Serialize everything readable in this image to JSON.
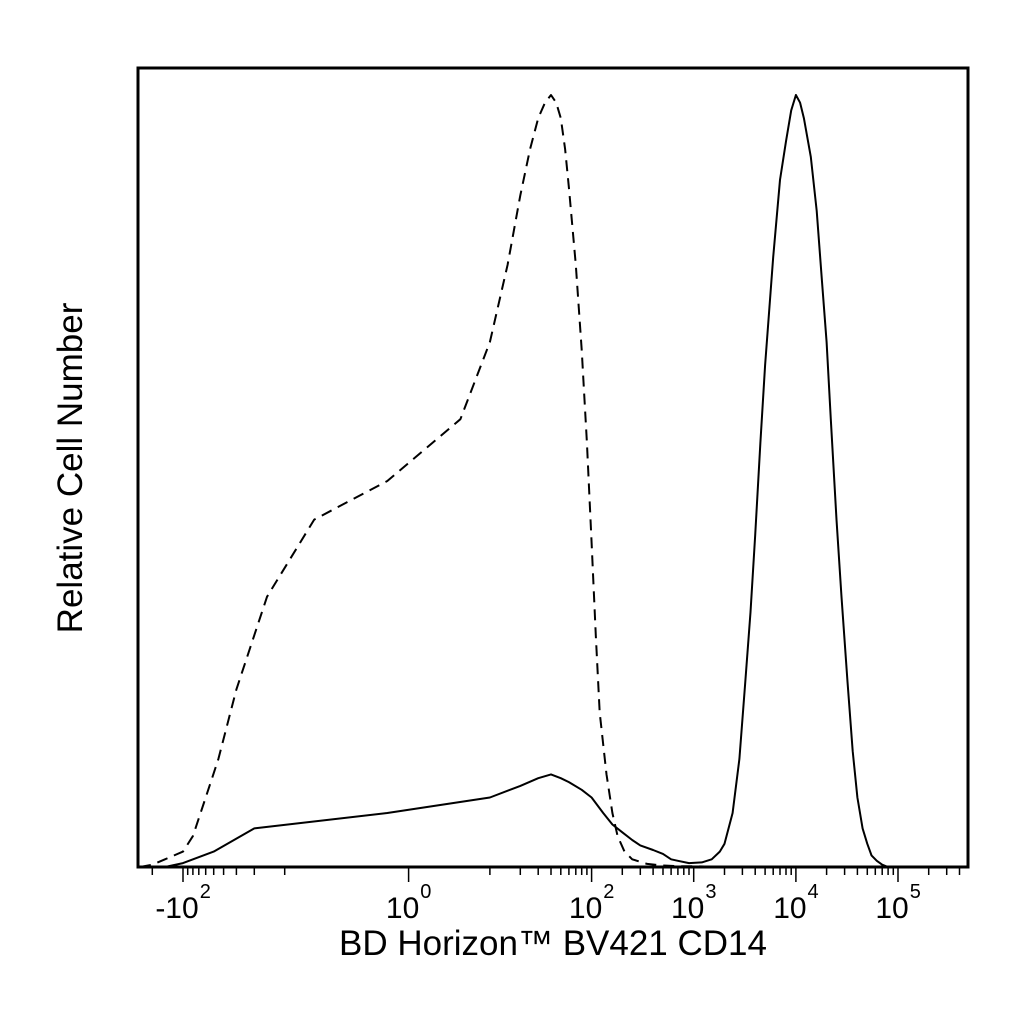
{
  "chart_data": {
    "type": "line",
    "title": "",
    "xlabel": "BD Horizon™ BV421 CD14",
    "ylabel": "Relative Cell Number",
    "x_scale": "biexponential",
    "xlim": [
      -300,
      250000
    ],
    "ylim": [
      0,
      100
    ],
    "grid": false,
    "legend": "none",
    "x_ticks": [
      {
        "label_base": "-10",
        "label_exp": "2",
        "value": -100
      },
      {
        "label_base": "10",
        "label_exp": "0",
        "value": 1
      },
      {
        "label_base": "10",
        "label_exp": "2",
        "value": 100
      },
      {
        "label_base": "10",
        "label_exp": "3",
        "value": 1000
      },
      {
        "label_base": "10",
        "label_exp": "4",
        "value": 10000
      },
      {
        "label_base": "10",
        "label_exp": "5",
        "value": 100000
      }
    ],
    "series": [
      {
        "line_style": "dashed",
        "color": "#000000",
        "points": [
          [
            -300,
            0
          ],
          [
            -200,
            0.3
          ],
          [
            -150,
            1
          ],
          [
            -100,
            2
          ],
          [
            -80,
            4
          ],
          [
            -60,
            9
          ],
          [
            -45,
            14
          ],
          [
            -30,
            23
          ],
          [
            -15,
            35
          ],
          [
            -5,
            45
          ],
          [
            0,
            50
          ],
          [
            5,
            58
          ],
          [
            10,
            68
          ],
          [
            15,
            78
          ],
          [
            20,
            87
          ],
          [
            25,
            93
          ],
          [
            30,
            97
          ],
          [
            35,
            99
          ],
          [
            40,
            100
          ],
          [
            45,
            99
          ],
          [
            50,
            97
          ],
          [
            55,
            93
          ],
          [
            60,
            88
          ],
          [
            70,
            78
          ],
          [
            80,
            67
          ],
          [
            90,
            55
          ],
          [
            100,
            42
          ],
          [
            110,
            30
          ],
          [
            120,
            20
          ],
          [
            140,
            12
          ],
          [
            160,
            7
          ],
          [
            180,
            4
          ],
          [
            210,
            2
          ],
          [
            250,
            1
          ],
          [
            350,
            0.4
          ],
          [
            500,
            0.2
          ],
          [
            700,
            0.1
          ],
          [
            1000,
            0.1
          ],
          [
            1500,
            0.05
          ],
          [
            2000,
            0
          ]
        ]
      },
      {
        "line_style": "solid",
        "color": "#000000",
        "points": [
          [
            -150,
            0
          ],
          [
            -100,
            0.5
          ],
          [
            -50,
            2
          ],
          [
            -20,
            5
          ],
          [
            0,
            7
          ],
          [
            10,
            9
          ],
          [
            20,
            10.5
          ],
          [
            30,
            11.5
          ],
          [
            40,
            12
          ],
          [
            50,
            11.5
          ],
          [
            60,
            11
          ],
          [
            80,
            10
          ],
          [
            100,
            9
          ],
          [
            130,
            7
          ],
          [
            160,
            5.5
          ],
          [
            200,
            4.5
          ],
          [
            250,
            3.5
          ],
          [
            300,
            2.8
          ],
          [
            400,
            2.2
          ],
          [
            500,
            1.7
          ],
          [
            600,
            1
          ],
          [
            700,
            0.8
          ],
          [
            900,
            0.5
          ],
          [
            1200,
            0.6
          ],
          [
            1500,
            1
          ],
          [
            1800,
            2
          ],
          [
            2000,
            3
          ],
          [
            2400,
            7
          ],
          [
            2800,
            14
          ],
          [
            3200,
            24
          ],
          [
            3600,
            33
          ],
          [
            4000,
            43
          ],
          [
            4500,
            55
          ],
          [
            5000,
            65
          ],
          [
            6000,
            79
          ],
          [
            7000,
            89
          ],
          [
            8000,
            94
          ],
          [
            9000,
            98
          ],
          [
            10000,
            100
          ],
          [
            11000,
            99
          ],
          [
            12000,
            97
          ],
          [
            14000,
            92
          ],
          [
            16000,
            85
          ],
          [
            18000,
            76
          ],
          [
            20000,
            68
          ],
          [
            22000,
            58
          ],
          [
            25000,
            45
          ],
          [
            28000,
            35
          ],
          [
            32000,
            24
          ],
          [
            36000,
            15
          ],
          [
            40000,
            9
          ],
          [
            45000,
            5
          ],
          [
            50000,
            3
          ],
          [
            55000,
            1.5
          ],
          [
            62000,
            0.8
          ],
          [
            70000,
            0.3
          ],
          [
            80000,
            0
          ]
        ]
      }
    ]
  }
}
